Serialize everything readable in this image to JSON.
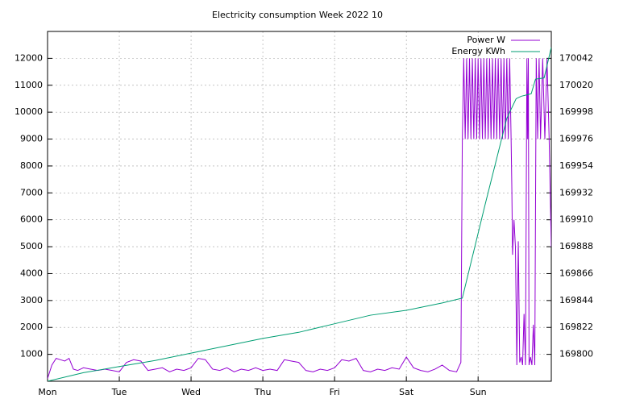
{
  "chart_data": {
    "type": "line",
    "title": "Electricity consumption Week 2022 10",
    "xlim": [
      0,
      7.02
    ],
    "xticks": [
      {
        "value": 0,
        "label": "Mon"
      },
      {
        "value": 1,
        "label": "Tue"
      },
      {
        "value": 2,
        "label": "Wed"
      },
      {
        "value": 3,
        "label": "Thu"
      },
      {
        "value": 4,
        "label": "Fri"
      },
      {
        "value": 5,
        "label": "Sat"
      },
      {
        "value": 6,
        "label": "Sun"
      }
    ],
    "ylim": [
      0,
      13000
    ],
    "yticks": [
      1000,
      2000,
      3000,
      4000,
      5000,
      6000,
      7000,
      8000,
      9000,
      10000,
      11000,
      12000
    ],
    "y2lim": [
      169778,
      170064
    ],
    "y2ticks": [
      169800,
      169822,
      169844,
      169866,
      169888,
      169910,
      169932,
      169954,
      169976,
      169998,
      170020,
      170042
    ],
    "grid": true,
    "legend": "top-right",
    "series": [
      {
        "name": "Power W",
        "color": "#9400d3",
        "x": [
          0,
          0.06,
          0.12,
          0.18,
          0.24,
          0.3,
          0.36,
          0.42,
          0.5,
          0.6,
          0.7,
          0.8,
          0.9,
          1.0,
          1.1,
          1.2,
          1.3,
          1.4,
          1.5,
          1.6,
          1.7,
          1.8,
          1.9,
          2.0,
          2.1,
          2.2,
          2.3,
          2.4,
          2.5,
          2.6,
          2.7,
          2.8,
          2.9,
          3.0,
          3.1,
          3.2,
          3.3,
          3.4,
          3.5,
          3.6,
          3.7,
          3.8,
          3.9,
          4.0,
          4.1,
          4.2,
          4.3,
          4.4,
          4.5,
          4.6,
          4.7,
          4.8,
          4.9,
          5.0,
          5.1,
          5.2,
          5.3,
          5.4,
          5.5,
          5.6,
          5.7,
          5.76,
          5.78,
          5.8,
          5.82,
          5.84,
          5.86,
          5.88,
          5.9,
          5.92,
          5.94,
          5.96,
          5.98,
          6.0,
          6.02,
          6.04,
          6.06,
          6.08,
          6.1,
          6.12,
          6.14,
          6.16,
          6.18,
          6.2,
          6.22,
          6.24,
          6.26,
          6.28,
          6.3,
          6.32,
          6.34,
          6.36,
          6.38,
          6.4,
          6.42,
          6.44,
          6.46,
          6.47,
          6.48,
          6.5,
          6.52,
          6.54,
          6.56,
          6.58,
          6.6,
          6.62,
          6.64,
          6.66,
          6.68,
          6.69,
          6.7,
          6.71,
          6.73,
          6.75,
          6.77,
          6.79,
          6.81,
          6.83,
          6.85,
          6.87,
          6.9,
          6.93,
          6.96,
          6.99,
          7.02
        ],
        "values": [
          100,
          600,
          850,
          800,
          750,
          850,
          450,
          400,
          500,
          450,
          400,
          450,
          400,
          350,
          700,
          800,
          750,
          400,
          450,
          500,
          350,
          450,
          400,
          500,
          850,
          800,
          450,
          400,
          500,
          350,
          450,
          400,
          500,
          400,
          450,
          400,
          800,
          750,
          700,
          400,
          350,
          450,
          400,
          500,
          800,
          750,
          850,
          400,
          350,
          450,
          400,
          500,
          450,
          900,
          500,
          400,
          350,
          450,
          600,
          400,
          350,
          700,
          9000,
          12000,
          9000,
          12000,
          9000,
          12000,
          9000,
          12000,
          9000,
          12000,
          9000,
          12000,
          9000,
          12000,
          9000,
          12000,
          9000,
          12000,
          9000,
          12000,
          9000,
          12000,
          9000,
          12000,
          9000,
          12000,
          9000,
          12000,
          9000,
          12000,
          9000,
          12000,
          9000,
          12000,
          9000,
          7200,
          4700,
          6000,
          5000,
          600,
          5200,
          700,
          900,
          600,
          2500,
          600,
          12000,
          9000,
          12000,
          600,
          900,
          600,
          2100,
          600,
          12000,
          9000,
          12000,
          9000,
          12000,
          9000,
          12000,
          9000,
          5000
        ]
      },
      {
        "name": "Energy KWh",
        "color": "#009e73",
        "axis": "y2",
        "x": [
          0,
          0.5,
          1,
          1.5,
          2,
          2.5,
          3,
          3.5,
          4,
          4.5,
          5,
          5.5,
          5.78,
          6.1,
          6.4,
          6.53,
          6.6,
          6.74,
          6.8,
          6.92,
          7.02
        ],
        "values": [
          169778,
          169785,
          169790,
          169795,
          169801,
          169807,
          169813,
          169818,
          169825,
          169832,
          169836,
          169842,
          169846,
          169923,
          169993,
          170009,
          170011,
          170013,
          170025,
          170026,
          170051
        ]
      }
    ]
  }
}
